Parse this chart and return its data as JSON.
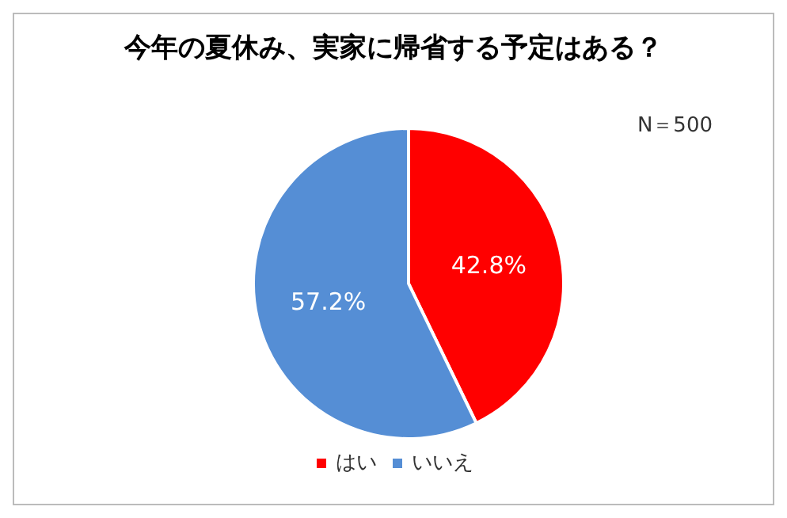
{
  "chart_data": {
    "type": "pie",
    "title": "今年の夏休み、実家に帰省する予定はある？",
    "categories": [
      "はい",
      "いいえ"
    ],
    "values": [
      42.8,
      57.2
    ],
    "colors": [
      "#ff0000",
      "#558ed5"
    ],
    "value_labels": [
      "42.8%",
      "57.2%"
    ],
    "legend": "bottom",
    "annotations": [
      "N＝500"
    ]
  }
}
